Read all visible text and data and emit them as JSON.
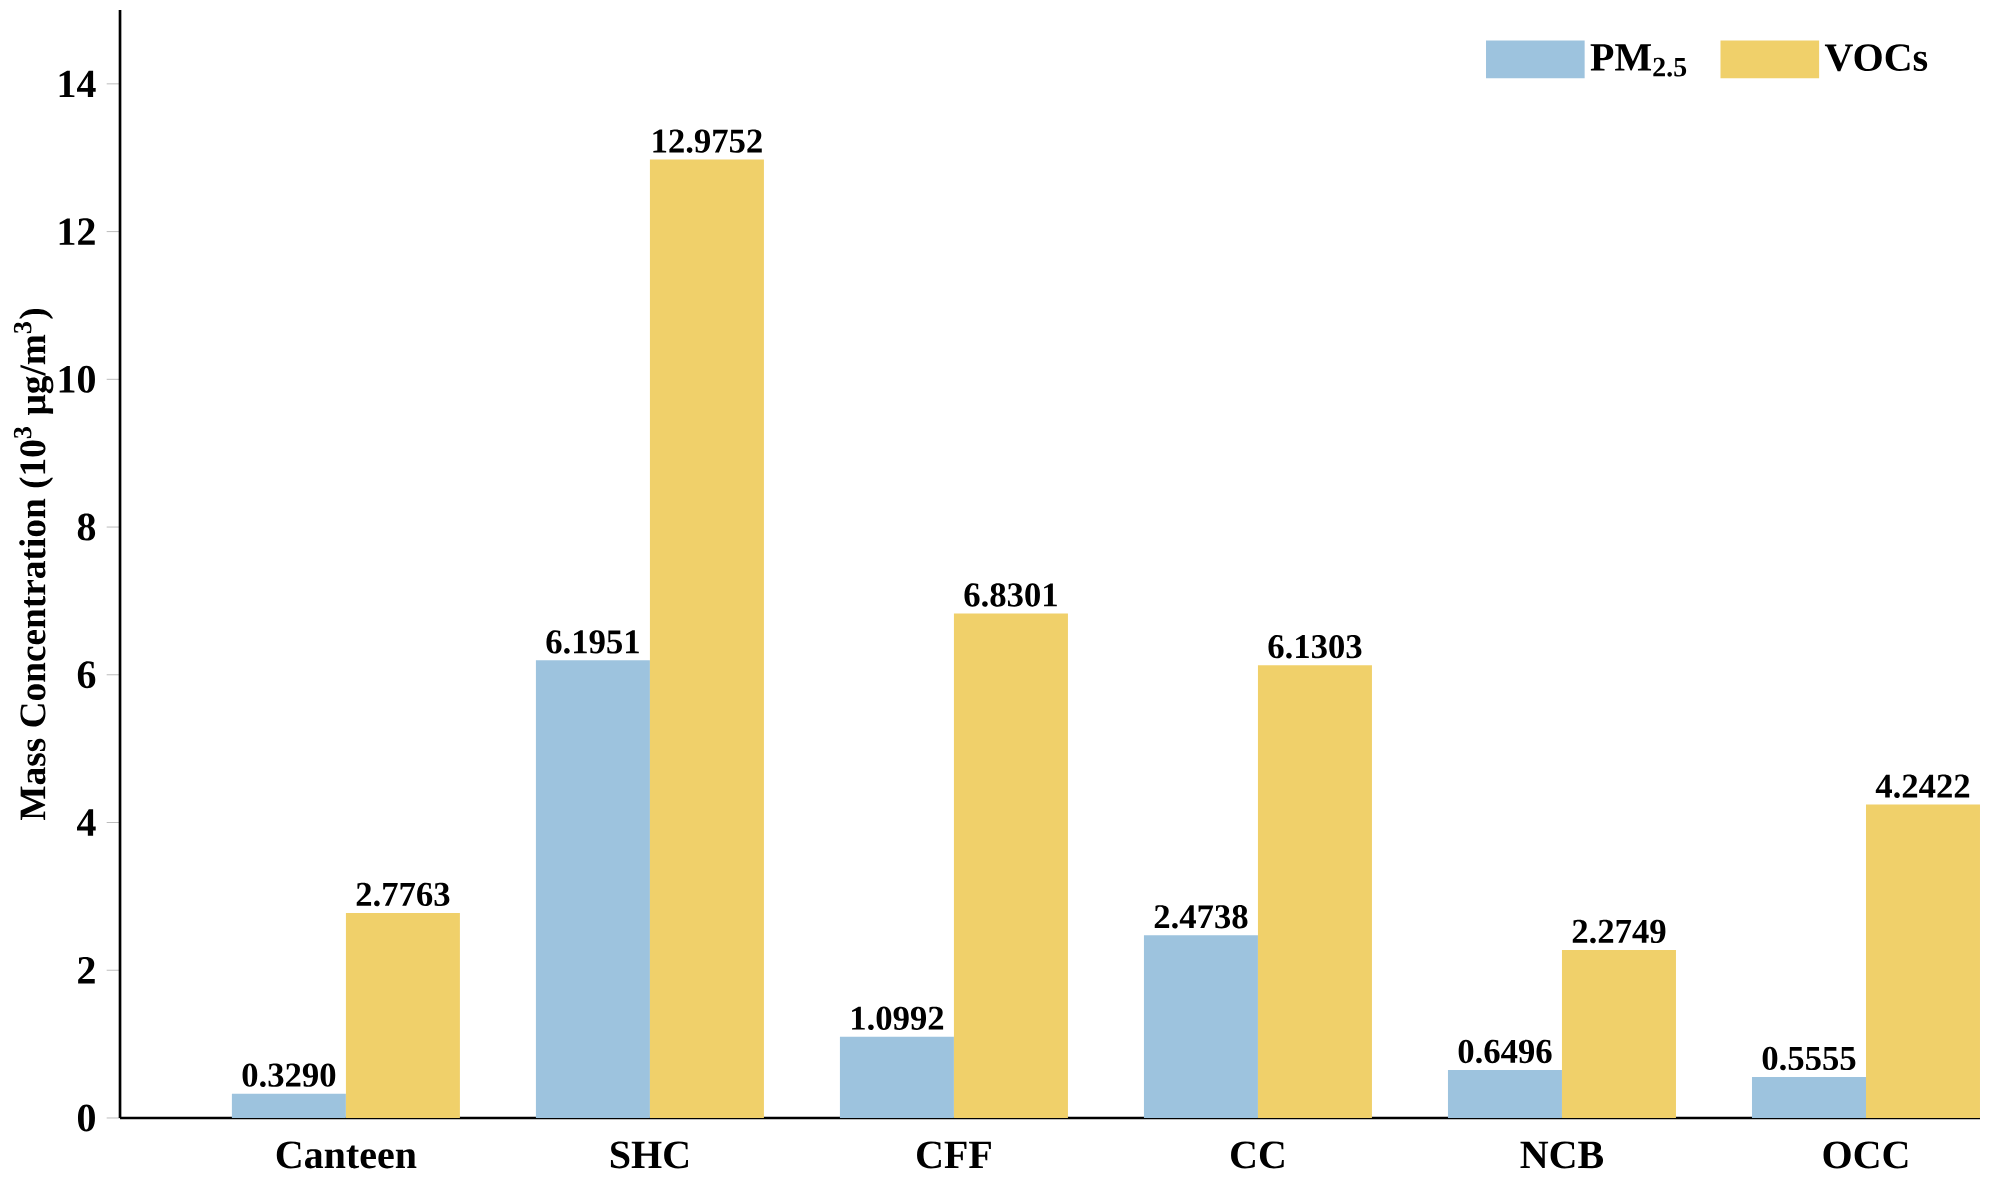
{
  "chart_data": {
    "type": "bar",
    "ylabel": "Mass Concentration (10$^{3}$ μg/m$^{3}$)",
    "categories": [
      "Canteen",
      "SHC",
      "CFF",
      "CC",
      "NCB",
      "OCC"
    ],
    "series": [
      {
        "name": "PM$_{2.5}$",
        "color": "#9dc3de",
        "values": [
          0.329,
          6.1951,
          1.0992,
          2.4738,
          0.6496,
          0.5555
        ],
        "value_labels": [
          "0.3290",
          "6.1951",
          "1.0992",
          "2.4738",
          "0.6496",
          "0.5555"
        ]
      },
      {
        "name": "VOCs",
        "color": "#f0d06a",
        "values": [
          2.7763,
          12.9752,
          6.8301,
          6.1303,
          2.2749,
          4.2422
        ],
        "value_labels": [
          "2.7763",
          "12.9752",
          "6.8301",
          "6.1303",
          "2.2749",
          "4.2422"
        ]
      }
    ],
    "ylim": [
      0,
      15
    ],
    "yticks": [
      0,
      2,
      4,
      6,
      8,
      10,
      12,
      14
    ],
    "legend": "top right"
  }
}
